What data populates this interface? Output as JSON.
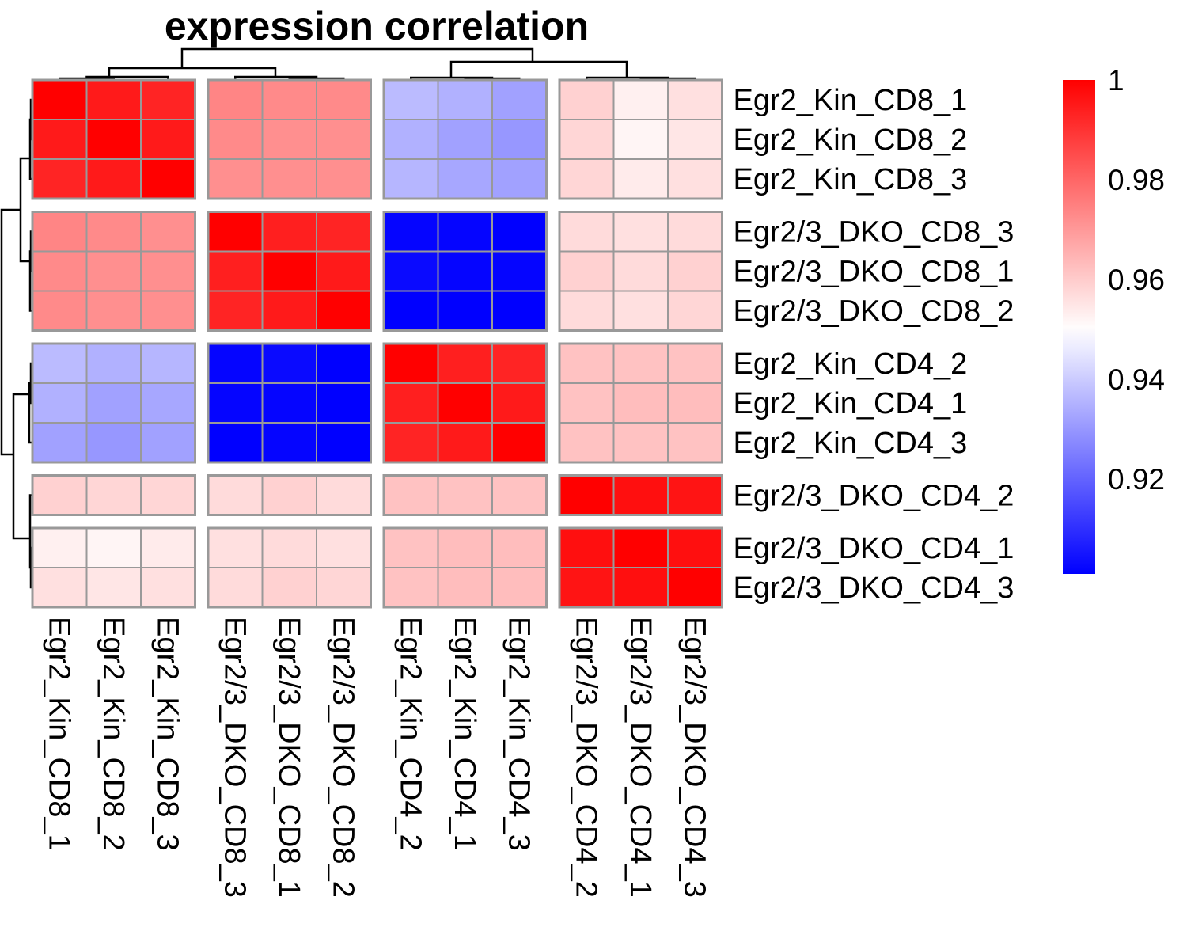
{
  "chart_data": {
    "type": "heatmap",
    "title": "expression correlation",
    "rows": [
      "Egr2_Kin_CD8_1",
      "Egr2_Kin_CD8_2",
      "Egr2_Kin_CD8_3",
      "Egr2/3_DKO_CD8_3",
      "Egr2/3_DKO_CD8_1",
      "Egr2/3_DKO_CD8_2",
      "Egr2_Kin_CD4_2",
      "Egr2_Kin_CD4_1",
      "Egr2_Kin_CD4_3",
      "Egr2/3_DKO_CD4_2",
      "Egr2/3_DKO_CD4_1",
      "Egr2/3_DKO_CD4_3"
    ],
    "columns": [
      "Egr2_Kin_CD8_1",
      "Egr2_Kin_CD8_2",
      "Egr2_Kin_CD8_3",
      "Egr2/3_DKO_CD8_3",
      "Egr2/3_DKO_CD8_1",
      "Egr2/3_DKO_CD8_2",
      "Egr2_Kin_CD4_2",
      "Egr2_Kin_CD4_1",
      "Egr2_Kin_CD4_3",
      "Egr2/3_DKO_CD4_2",
      "Egr2/3_DKO_CD4_1",
      "Egr2/3_DKO_CD4_3"
    ],
    "values": [
      [
        1.0,
        0.995,
        0.993,
        0.974,
        0.973,
        0.973,
        0.937,
        0.935,
        0.932,
        0.959,
        0.953,
        0.956
      ],
      [
        0.995,
        1.0,
        0.995,
        0.973,
        0.972,
        0.972,
        0.935,
        0.932,
        0.93,
        0.958,
        0.952,
        0.955
      ],
      [
        0.993,
        0.995,
        1.0,
        0.972,
        0.972,
        0.972,
        0.936,
        0.933,
        0.932,
        0.958,
        0.954,
        0.956
      ],
      [
        0.974,
        0.973,
        0.972,
        1.0,
        0.994,
        0.993,
        0.902,
        0.902,
        0.901,
        0.957,
        0.956,
        0.957
      ],
      [
        0.973,
        0.972,
        0.972,
        0.994,
        1.0,
        0.995,
        0.903,
        0.902,
        0.902,
        0.959,
        0.957,
        0.959
      ],
      [
        0.973,
        0.972,
        0.972,
        0.993,
        0.995,
        1.0,
        0.901,
        0.901,
        0.901,
        0.957,
        0.956,
        0.958
      ],
      [
        0.937,
        0.935,
        0.936,
        0.902,
        0.903,
        0.901,
        1.0,
        0.994,
        0.993,
        0.962,
        0.962,
        0.962
      ],
      [
        0.935,
        0.932,
        0.933,
        0.902,
        0.902,
        0.901,
        0.994,
        1.0,
        0.995,
        0.962,
        0.963,
        0.963
      ],
      [
        0.932,
        0.93,
        0.932,
        0.901,
        0.902,
        0.901,
        0.993,
        0.995,
        1.0,
        0.962,
        0.962,
        0.962
      ],
      [
        0.959,
        0.958,
        0.958,
        0.957,
        0.959,
        0.957,
        0.962,
        0.962,
        0.962,
        1.0,
        0.997,
        0.996
      ],
      [
        0.953,
        0.952,
        0.954,
        0.956,
        0.957,
        0.956,
        0.962,
        0.963,
        0.963,
        0.997,
        1.0,
        0.997
      ],
      [
        0.956,
        0.955,
        0.956,
        0.957,
        0.959,
        0.958,
        0.962,
        0.963,
        0.963,
        0.996,
        0.997,
        1.0
      ]
    ],
    "row_groups": [
      3,
      3,
      3,
      1,
      2
    ],
    "col_groups": [
      3,
      3,
      3,
      3
    ],
    "color_scale": {
      "min": 0.901,
      "mid": 0.95,
      "max": 1.0,
      "low_color": "#0000ff",
      "mid_color": "#ffffff",
      "high_color": "#ff0000"
    },
    "legend": {
      "ticks": [
        "1",
        "0.98",
        "0.96",
        "0.94",
        "0.92"
      ],
      "tick_values": [
        1.0,
        0.98,
        0.96,
        0.94,
        0.92
      ],
      "placement": "right"
    },
    "cell_border_color": "#999999",
    "row_dendrogram": "left",
    "column_dendrogram": "top"
  }
}
